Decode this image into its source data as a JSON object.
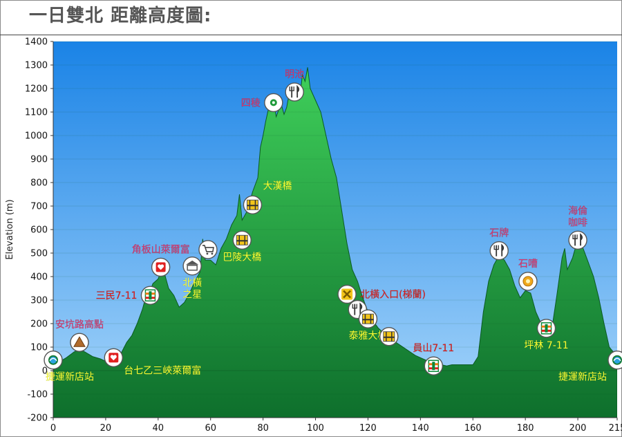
{
  "page": {
    "title": "一日雙北 距離高度圖:"
  },
  "colors": {
    "sky_top": "#1a83e6",
    "sky_bottom": "#a9d7fb",
    "terrain_dark": "#0e6f2c",
    "terrain_light": "#3fcf5a",
    "label_pink": "#e0306a",
    "label_yellow": "#ffff33",
    "label_red": "#e01818"
  },
  "chart_data": {
    "type": "area",
    "title": "",
    "xlabel": "",
    "ylabel": "Elevation (m)",
    "xlim": [
      0,
      215
    ],
    "ylim": [
      -200,
      1400
    ],
    "x_ticks": [
      "0",
      "20",
      "40",
      "60",
      "80",
      "100",
      "120",
      "140",
      "160",
      "180",
      "200",
      "215"
    ],
    "y_ticks": [
      "-200",
      "-100",
      "0",
      "100",
      "200",
      "300",
      "400",
      "500",
      "600",
      "700",
      "800",
      "900",
      "1000",
      "1100",
      "1200",
      "1300",
      "1400"
    ],
    "grid": "horizontal",
    "series": [
      {
        "x": [
          0,
          2,
          5,
          8,
          10,
          12,
          15,
          18,
          20,
          22,
          25,
          28,
          30,
          32,
          34,
          35,
          37,
          38,
          40,
          41,
          42,
          44,
          46,
          48,
          50,
          52,
          54,
          56,
          57,
          58,
          60,
          62,
          64,
          66,
          68,
          70,
          71,
          72,
          74,
          76,
          78,
          79,
          80,
          81,
          82,
          83,
          84,
          85,
          86,
          87,
          88,
          89,
          90,
          92,
          93,
          94,
          95,
          96,
          97,
          98,
          100,
          102,
          104,
          106,
          108,
          110,
          112,
          114,
          116,
          118,
          120,
          122,
          124,
          126,
          128,
          130,
          132,
          134,
          136,
          138,
          140,
          142,
          144,
          146,
          148,
          150,
          152,
          155,
          158,
          160,
          162,
          164,
          166,
          168,
          170,
          172,
          174,
          176,
          178,
          180,
          182,
          184,
          186,
          188,
          190,
          192,
          194,
          195,
          196,
          198,
          200,
          202,
          204,
          206,
          208,
          210,
          212,
          215
        ],
        "values": [
          20,
          35,
          55,
          80,
          90,
          80,
          60,
          50,
          40,
          35,
          55,
          120,
          150,
          200,
          260,
          300,
          340,
          370,
          390,
          420,
          430,
          350,
          320,
          270,
          290,
          330,
          380,
          420,
          560,
          470,
          470,
          450,
          520,
          560,
          620,
          660,
          750,
          640,
          680,
          760,
          820,
          950,
          1000,
          1060,
          1110,
          1130,
          1150,
          1080,
          1110,
          1130,
          1090,
          1120,
          1180,
          1150,
          1200,
          1160,
          1260,
          1230,
          1290,
          1200,
          1150,
          1100,
          1000,
          900,
          820,
          680,
          540,
          430,
          380,
          310,
          250,
          210,
          180,
          160,
          140,
          125,
          110,
          95,
          80,
          65,
          55,
          45,
          35,
          30,
          25,
          20,
          25,
          25,
          25,
          25,
          60,
          250,
          380,
          450,
          490,
          470,
          430,
          360,
          310,
          340,
          330,
          250,
          200,
          160,
          170,
          320,
          480,
          520,
          430,
          480,
          560,
          520,
          460,
          400,
          310,
          200,
          100,
          60
        ]
      }
    ],
    "annotations": [
      {
        "x": 0,
        "y": 45,
        "icon": "bike-station-icon",
        "text": "捷運新店站",
        "color": "yellow",
        "anchor": "below-right"
      },
      {
        "x": 10,
        "y": 120,
        "icon": "mountain-icon",
        "text": "安坑路高點",
        "color": "pink",
        "anchor": "above"
      },
      {
        "x": 23,
        "y": 55,
        "icon": "heart-icon",
        "text": "台七乙三峽萊爾富",
        "color": "yellow",
        "anchor": "right-below"
      },
      {
        "x": 37,
        "y": 320,
        "icon": "convenience-store-icon",
        "text": "三民7-11",
        "color": "red",
        "anchor": "left"
      },
      {
        "x": 41,
        "y": 440,
        "icon": "heart-icon",
        "text": "角板山萊爾富",
        "color": "pink",
        "anchor": "above"
      },
      {
        "x": 53,
        "y": 445,
        "icon": "landmark-icon",
        "text": "北橫\n之星",
        "color": "yellow",
        "anchor": "below"
      },
      {
        "x": 59,
        "y": 515,
        "icon": "cart-icon",
        "text": "",
        "color": "yellow",
        "anchor": "none"
      },
      {
        "x": 72,
        "y": 555,
        "icon": "bridge-icon",
        "text": "巴陵大橋",
        "color": "yellow",
        "anchor": "below"
      },
      {
        "x": 76,
        "y": 705,
        "icon": "bridge-icon",
        "text": "大漢橋",
        "color": "yellow",
        "anchor": "above-right"
      },
      {
        "x": 84,
        "y": 1140,
        "icon": "dot-icon",
        "text": "四稜",
        "color": "pink",
        "anchor": "left"
      },
      {
        "x": 92,
        "y": 1185,
        "icon": "fork-knife-icon",
        "text": "明池",
        "color": "pink",
        "anchor": "above"
      },
      {
        "x": 112,
        "y": 325,
        "icon": "junction-icon",
        "text": "北橫入口(梯蘭)",
        "color": "red",
        "anchor": "right"
      },
      {
        "x": 116,
        "y": 260,
        "icon": "fork-knife-icon",
        "text": "",
        "color": "yellow",
        "anchor": "none"
      },
      {
        "x": 120,
        "y": 220,
        "icon": "bridge-icon",
        "text": "泰雅大橋",
        "color": "yellow",
        "anchor": "below"
      },
      {
        "x": 128,
        "y": 145,
        "icon": "bridge-icon",
        "text": "",
        "color": "yellow",
        "anchor": "none"
      },
      {
        "x": 145,
        "y": 20,
        "icon": "convenience-store-icon",
        "text": "員山7-11",
        "color": "red",
        "anchor": "above"
      },
      {
        "x": 170,
        "y": 510,
        "icon": "fork-knife-icon",
        "text": "石牌",
        "color": "pink",
        "anchor": "above"
      },
      {
        "x": 181,
        "y": 380,
        "icon": "sun-icon",
        "text": "石嘈",
        "color": "pink",
        "anchor": "above"
      },
      {
        "x": 188,
        "y": 180,
        "icon": "convenience-store-icon",
        "text": "坪林 7-11",
        "color": "yellow",
        "anchor": "below"
      },
      {
        "x": 200,
        "y": 555,
        "icon": "fork-knife-icon",
        "text": "海倫\n咖啡",
        "color": "pink",
        "anchor": "above"
      },
      {
        "x": 215,
        "y": 45,
        "icon": "bike-station-icon",
        "text": "捷運新店站",
        "color": "yellow",
        "anchor": "below-left"
      }
    ]
  }
}
